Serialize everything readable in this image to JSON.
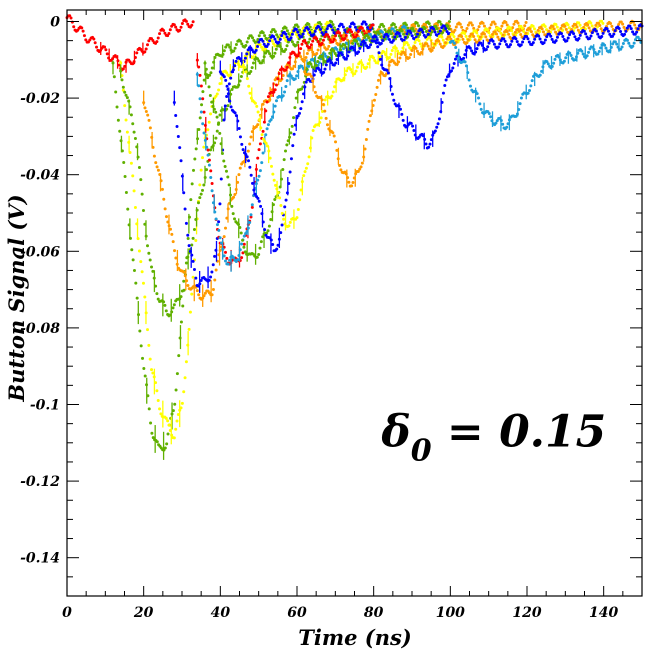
{
  "chart_data": {
    "type": "scatter",
    "title": "",
    "xlabel": "Time (ns)",
    "ylabel": "Button Signal (V)",
    "xlim": [
      0,
      150
    ],
    "ylim": [
      -0.15,
      0.003
    ],
    "xticks": [
      0,
      20,
      40,
      60,
      80,
      100,
      120,
      140
    ],
    "xtick_labels": [
      "0",
      "20",
      "40",
      "60",
      "80",
      "100",
      "120",
      "140"
    ],
    "yticks": [
      0,
      -0.02,
      -0.04,
      -0.06,
      -0.08,
      -0.1,
      -0.12,
      -0.14
    ],
    "ytick_labels": [
      "0",
      "-0.02",
      "-0.04",
      "-0.06",
      "-0.08",
      "-0.1",
      "-0.12",
      "-0.14"
    ],
    "grid": false,
    "legend": "none",
    "annotation": {
      "text_main": "δ",
      "text_sub": "0",
      "text_rest": " = 0.15",
      "x": 82,
      "y": -0.111
    },
    "series": [
      {
        "color": "#ff0000",
        "points": [
          [
            0,
            0.001
          ],
          [
            5,
            -0.004
          ],
          [
            10,
            -0.008
          ],
          [
            15,
            -0.012
          ],
          [
            20,
            -0.007
          ],
          [
            25,
            -0.003
          ],
          [
            30,
            -0.001
          ],
          [
            33,
            0.0
          ]
        ]
      },
      {
        "color": "#60b000",
        "points": [
          [
            12,
            -0.012
          ],
          [
            14,
            -0.03
          ],
          [
            16,
            -0.05
          ],
          [
            18,
            -0.07
          ],
          [
            20,
            -0.09
          ],
          [
            22,
            -0.106
          ],
          [
            24,
            -0.112
          ],
          [
            26,
            -0.11
          ],
          [
            28,
            -0.1
          ],
          [
            30,
            -0.078
          ],
          [
            32,
            -0.05
          ],
          [
            34,
            -0.03
          ],
          [
            36,
            -0.015
          ],
          [
            40,
            -0.008
          ],
          [
            50,
            -0.004
          ],
          [
            60,
            -0.002
          ],
          [
            70,
            -0.001
          ]
        ]
      },
      {
        "color": "#ffff00",
        "points": [
          [
            14,
            -0.012
          ],
          [
            16,
            -0.03
          ],
          [
            18,
            -0.05
          ],
          [
            20,
            -0.07
          ],
          [
            22,
            -0.09
          ],
          [
            24,
            -0.1
          ],
          [
            26,
            -0.105
          ],
          [
            28,
            -0.108
          ],
          [
            30,
            -0.1
          ],
          [
            32,
            -0.08
          ],
          [
            34,
            -0.05
          ],
          [
            36,
            -0.03
          ],
          [
            40,
            -0.015
          ],
          [
            50,
            -0.007
          ],
          [
            60,
            -0.003
          ],
          [
            70,
            -0.001
          ]
        ]
      },
      {
        "color": "#60b000",
        "points": [
          [
            14,
            -0.013
          ],
          [
            18,
            -0.03
          ],
          [
            20,
            -0.05
          ],
          [
            22,
            -0.065
          ],
          [
            24,
            -0.072
          ],
          [
            26,
            -0.076
          ],
          [
            28,
            -0.075
          ],
          [
            30,
            -0.07
          ],
          [
            33,
            -0.055
          ],
          [
            36,
            -0.04
          ],
          [
            40,
            -0.025
          ],
          [
            45,
            -0.015
          ],
          [
            50,
            -0.01
          ],
          [
            60,
            -0.005
          ],
          [
            80,
            -0.002
          ],
          [
            100,
            -0.001
          ]
        ]
      },
      {
        "color": "#ff9a00",
        "points": [
          [
            20,
            -0.02
          ],
          [
            24,
            -0.04
          ],
          [
            28,
            -0.06
          ],
          [
            30,
            -0.066
          ],
          [
            33,
            -0.07
          ],
          [
            36,
            -0.072
          ],
          [
            38,
            -0.07
          ],
          [
            40,
            -0.06
          ],
          [
            42,
            -0.05
          ],
          [
            45,
            -0.04
          ],
          [
            50,
            -0.025
          ],
          [
            55,
            -0.015
          ],
          [
            60,
            -0.01
          ],
          [
            70,
            -0.005
          ],
          [
            90,
            -0.002
          ],
          [
            120,
            -0.001
          ]
        ]
      },
      {
        "color": "#0000ff",
        "points": [
          [
            28,
            -0.02
          ],
          [
            30,
            -0.04
          ],
          [
            32,
            -0.06
          ],
          [
            34,
            -0.068
          ],
          [
            36,
            -0.068
          ],
          [
            38,
            -0.065
          ],
          [
            39,
            -0.06
          ],
          [
            40,
            -0.045
          ],
          [
            41,
            -0.025
          ],
          [
            43,
            -0.012
          ],
          [
            50,
            -0.006
          ],
          [
            60,
            -0.003
          ],
          [
            80,
            -0.001
          ]
        ]
      },
      {
        "color": "#ff0000",
        "points": [
          [
            34,
            -0.01
          ],
          [
            36,
            -0.025
          ],
          [
            38,
            -0.045
          ],
          [
            40,
            -0.058
          ],
          [
            42,
            -0.062
          ],
          [
            44,
            -0.063
          ],
          [
            46,
            -0.06
          ],
          [
            48,
            -0.05
          ],
          [
            50,
            -0.035
          ],
          [
            52,
            -0.022
          ],
          [
            55,
            -0.015
          ],
          [
            58,
            -0.01
          ],
          [
            62,
            -0.006
          ],
          [
            70,
            -0.004
          ],
          [
            80,
            -0.002
          ]
        ]
      },
      {
        "color": "#1e9ed8",
        "points": [
          [
            34,
            -0.015
          ],
          [
            36,
            -0.03
          ],
          [
            38,
            -0.045
          ],
          [
            40,
            -0.058
          ],
          [
            42,
            -0.063
          ],
          [
            44,
            -0.062
          ],
          [
            46,
            -0.058
          ],
          [
            48,
            -0.05
          ],
          [
            50,
            -0.04
          ],
          [
            53,
            -0.025
          ],
          [
            58,
            -0.015
          ],
          [
            62,
            -0.012
          ],
          [
            70,
            -0.008
          ],
          [
            80,
            -0.004
          ],
          [
            90,
            -0.002
          ]
        ]
      },
      {
        "color": "#60b000",
        "points": [
          [
            36,
            -0.012
          ],
          [
            40,
            -0.03
          ],
          [
            43,
            -0.048
          ],
          [
            46,
            -0.058
          ],
          [
            48,
            -0.062
          ],
          [
            50,
            -0.06
          ],
          [
            52,
            -0.055
          ],
          [
            55,
            -0.045
          ],
          [
            58,
            -0.03
          ],
          [
            60,
            -0.02
          ],
          [
            63,
            -0.012
          ],
          [
            70,
            -0.008
          ],
          [
            80,
            -0.004
          ],
          [
            100,
            -0.002
          ]
        ]
      },
      {
        "color": "#0000ff",
        "points": [
          [
            40,
            -0.012
          ],
          [
            44,
            -0.025
          ],
          [
            48,
            -0.04
          ],
          [
            52,
            -0.055
          ],
          [
            54,
            -0.06
          ],
          [
            56,
            -0.055
          ],
          [
            58,
            -0.04
          ],
          [
            60,
            -0.025
          ],
          [
            63,
            -0.015
          ],
          [
            70,
            -0.01
          ],
          [
            80,
            -0.005
          ],
          [
            100,
            -0.002
          ]
        ]
      },
      {
        "color": "#ffff00",
        "points": [
          [
            46,
            -0.012
          ],
          [
            50,
            -0.025
          ],
          [
            54,
            -0.04
          ],
          [
            56,
            -0.05
          ],
          [
            58,
            -0.054
          ],
          [
            60,
            -0.05
          ],
          [
            62,
            -0.04
          ],
          [
            64,
            -0.03
          ],
          [
            68,
            -0.02
          ],
          [
            72,
            -0.014
          ],
          [
            80,
            -0.01
          ],
          [
            90,
            -0.006
          ],
          [
            110,
            -0.003
          ],
          [
            140,
            -0.001
          ]
        ]
      },
      {
        "color": "#ff9a00",
        "points": [
          [
            62,
            -0.012
          ],
          [
            66,
            -0.02
          ],
          [
            70,
            -0.032
          ],
          [
            72,
            -0.04
          ],
          [
            74,
            -0.042
          ],
          [
            76,
            -0.04
          ],
          [
            78,
            -0.032
          ],
          [
            80,
            -0.02
          ],
          [
            82,
            -0.014
          ],
          [
            86,
            -0.01
          ],
          [
            90,
            -0.008
          ],
          [
            100,
            -0.005
          ],
          [
            110,
            -0.004
          ],
          [
            130,
            -0.002
          ],
          [
            150,
            -0.001
          ]
        ]
      },
      {
        "color": "#0000ff",
        "points": [
          [
            80,
            -0.005
          ],
          [
            84,
            -0.015
          ],
          [
            86,
            -0.022
          ],
          [
            88,
            -0.026
          ],
          [
            90,
            -0.028
          ],
          [
            92,
            -0.03
          ],
          [
            94,
            -0.032
          ],
          [
            96,
            -0.03
          ],
          [
            98,
            -0.02
          ],
          [
            100,
            -0.012
          ],
          [
            104,
            -0.008
          ],
          [
            110,
            -0.006
          ],
          [
            120,
            -0.005
          ],
          [
            130,
            -0.004
          ],
          [
            140,
            -0.003
          ],
          [
            150,
            -0.002
          ]
        ]
      },
      {
        "color": "#1e9ed8",
        "points": [
          [
            100,
            -0.005
          ],
          [
            104,
            -0.012
          ],
          [
            106,
            -0.018
          ],
          [
            108,
            -0.022
          ],
          [
            110,
            -0.025
          ],
          [
            112,
            -0.026
          ],
          [
            114,
            -0.027
          ],
          [
            116,
            -0.026
          ],
          [
            118,
            -0.022
          ],
          [
            120,
            -0.018
          ],
          [
            124,
            -0.012
          ],
          [
            128,
            -0.01
          ],
          [
            132,
            -0.009
          ],
          [
            136,
            -0.008
          ],
          [
            140,
            -0.007
          ],
          [
            145,
            -0.006
          ],
          [
            150,
            -0.005
          ]
        ]
      }
    ]
  }
}
